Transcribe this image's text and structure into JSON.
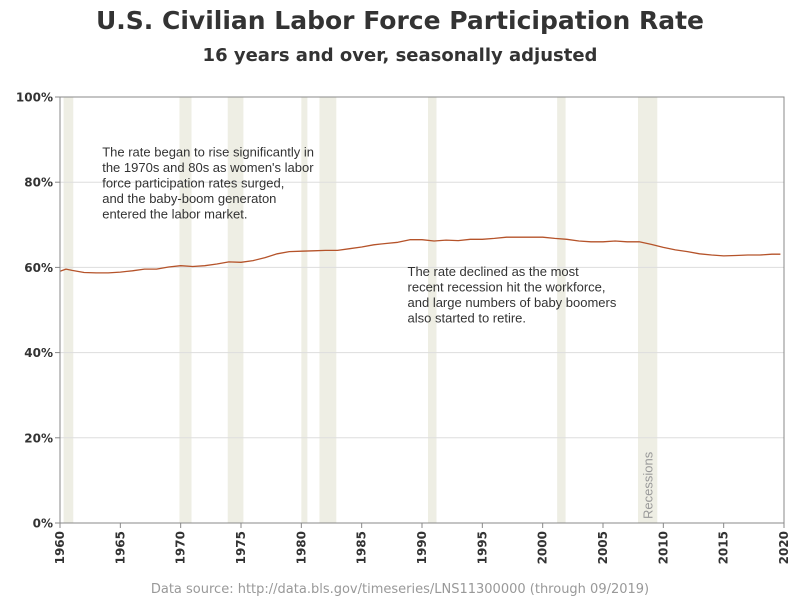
{
  "title": "U.S. Civilian Labor Force Participation Rate",
  "subtitle": "16 years and over, seasonally adjusted",
  "source": "Data source: http://data.bls.gov/timeseries/LNS11300000 (through 09/2019)",
  "colors": {
    "line": "#b5532a",
    "recession": "#eeeee4",
    "grid": "#dddddd",
    "axis": "#888888",
    "text": "#333333",
    "muted": "#999999"
  },
  "chart_data": {
    "type": "line",
    "title": "U.S. Civilian Labor Force Participation Rate",
    "subtitle": "16 years and over, seasonally adjusted",
    "xlabel": "",
    "ylabel": "",
    "xlim": [
      1960,
      2020
    ],
    "ylim": [
      0,
      100
    ],
    "grid": true,
    "x_ticks": [
      1960,
      1965,
      1970,
      1975,
      1980,
      1985,
      1990,
      1995,
      2000,
      2005,
      2010,
      2015,
      2020
    ],
    "y_ticks": [
      0,
      20,
      40,
      60,
      80,
      100
    ],
    "y_tick_labels": [
      "0%",
      "20%",
      "40%",
      "60%",
      "80%",
      "100%"
    ],
    "recession_label": "Recessions",
    "recessions": [
      {
        "start": 1960.3,
        "end": 1961.1
      },
      {
        "start": 1969.9,
        "end": 1970.9
      },
      {
        "start": 1973.9,
        "end": 1975.2
      },
      {
        "start": 1980.0,
        "end": 1980.5
      },
      {
        "start": 1981.5,
        "end": 1982.9
      },
      {
        "start": 1990.5,
        "end": 1991.2
      },
      {
        "start": 2001.2,
        "end": 2001.9
      },
      {
        "start": 2007.9,
        "end": 2009.5
      }
    ],
    "series": [
      {
        "x": [
          1960.0,
          1960.5,
          1961,
          1962,
          1963,
          1964,
          1965,
          1966,
          1967,
          1968,
          1969,
          1970,
          1971,
          1972,
          1973,
          1974,
          1975,
          1976,
          1977,
          1978,
          1979,
          1980,
          1981,
          1982,
          1983,
          1984,
          1985,
          1986,
          1987,
          1988,
          1989,
          1990,
          1991,
          1992,
          1993,
          1994,
          1995,
          1996,
          1997,
          1998,
          1999,
          2000,
          2001,
          2002,
          2003,
          2004,
          2005,
          2006,
          2007,
          2008,
          2009,
          2010,
          2011,
          2012,
          2013,
          2014,
          2015,
          2016,
          2017,
          2018,
          2019,
          2019.7
        ],
        "values": [
          59.1,
          59.6,
          59.3,
          58.8,
          58.7,
          58.7,
          58.9,
          59.2,
          59.6,
          59.6,
          60.1,
          60.4,
          60.2,
          60.4,
          60.8,
          61.3,
          61.2,
          61.6,
          62.3,
          63.2,
          63.7,
          63.8,
          63.9,
          64.0,
          64.0,
          64.4,
          64.8,
          65.3,
          65.6,
          65.9,
          66.5,
          66.5,
          66.2,
          66.4,
          66.3,
          66.6,
          66.6,
          66.8,
          67.1,
          67.1,
          67.1,
          67.1,
          66.8,
          66.6,
          66.2,
          66.0,
          66.0,
          66.2,
          66.0,
          66.0,
          65.4,
          64.7,
          64.1,
          63.7,
          63.2,
          62.9,
          62.7,
          62.8,
          62.9,
          62.9,
          63.1,
          63.1
        ]
      }
    ],
    "annotations": [
      {
        "x": 1963.5,
        "y": 86,
        "lines": [
          "The rate began to rise significantly in",
          "the 1970s and 80s as women's labor",
          "force participation rates surged,",
          "and the baby-boom generaton",
          "entered the labor market."
        ]
      },
      {
        "x": 1988.8,
        "y": 58,
        "lines": [
          "The rate declined as the most",
          "recent recession hit the workforce,",
          "and large numbers of baby boomers",
          "also started to retire."
        ]
      }
    ]
  }
}
